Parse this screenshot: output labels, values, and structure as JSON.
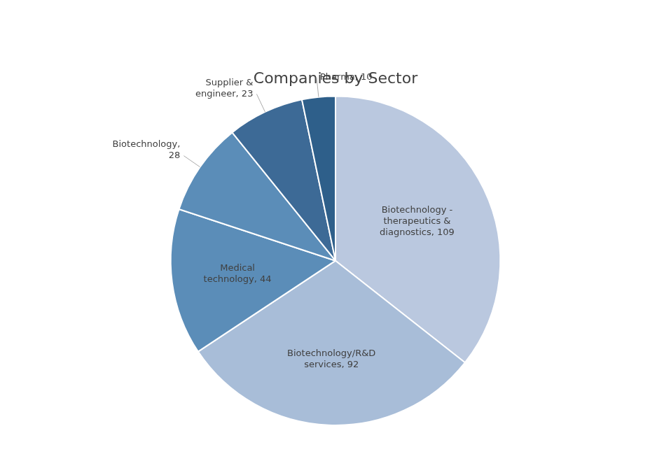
{
  "chart_data": {
    "type": "pie",
    "title": "Companies by Sector",
    "categories": [
      "Biotechnology -\ntherapeutics &\ndiagnostics, 109",
      "Biotechnology/R&D\nservices, 92",
      "Medical\ntechnology, 44",
      "Biotechnology,\n28",
      "Supplier &\nengineer, 23",
      "Pharma, 10"
    ],
    "values": [
      109,
      92,
      44,
      28,
      23,
      10
    ],
    "colors": [
      "#bac8df",
      "#a8bdd8",
      "#5b8db8",
      "#5b8db8",
      "#3d6a96",
      "#2e5f8a"
    ],
    "legend": false
  }
}
